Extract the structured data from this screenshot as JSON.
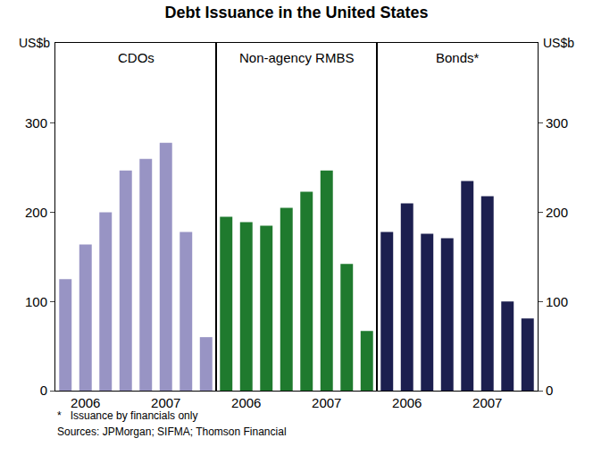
{
  "title": "Debt Issuance in the United States",
  "ylabel": "US$b",
  "notes": [
    "*   Issuance by financials only",
    "Sources: JPMorgan; SIFMA; Thomson Financial"
  ],
  "chart_data": [
    {
      "type": "bar",
      "title": "CDOs",
      "categories": [
        null,
        "2006",
        null,
        null,
        null,
        "2007",
        null,
        null
      ],
      "values": [
        125,
        164,
        200,
        247,
        260,
        278,
        178,
        60
      ],
      "color": "#9894c4",
      "ylim": [
        0,
        390
      ],
      "yticks": [
        0,
        100,
        200,
        300
      ],
      "grid": false
    },
    {
      "type": "bar",
      "title": "Non-agency RMBS",
      "categories": [
        null,
        "2006",
        null,
        null,
        null,
        "2007",
        null,
        null
      ],
      "values": [
        195,
        189,
        185,
        205,
        223,
        247,
        142,
        67
      ],
      "color": "#1f7a2e",
      "ylim": [
        0,
        390
      ],
      "yticks": [
        0,
        100,
        200,
        300
      ],
      "grid": false
    },
    {
      "type": "bar",
      "title": "Bonds*",
      "categories": [
        null,
        "2006",
        null,
        null,
        null,
        "2007",
        null,
        null
      ],
      "values": [
        178,
        210,
        176,
        171,
        235,
        218,
        100,
        81
      ],
      "color": "#1c1f4f",
      "ylim": [
        0,
        390
      ],
      "yticks": [
        0,
        100,
        200,
        300
      ],
      "grid": false
    }
  ]
}
